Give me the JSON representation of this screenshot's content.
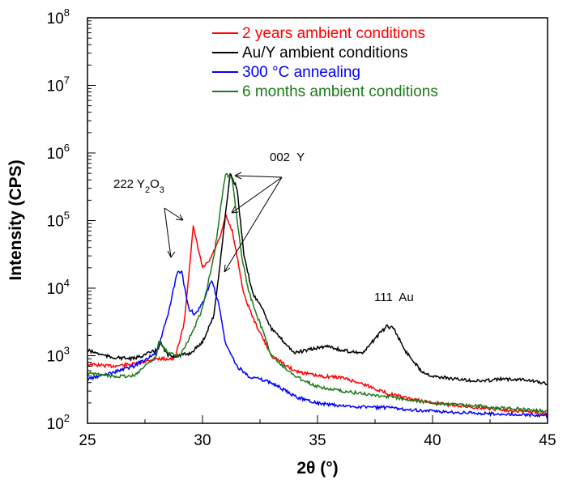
{
  "chart_data": {
    "type": "line",
    "xlabel": "2θ (°)",
    "ylabel": "Intensity (CPS)",
    "xlim": [
      25,
      45
    ],
    "ylim": [
      100,
      100000000
    ],
    "yscale": "log",
    "xticks": [
      "25",
      "30",
      "35",
      "40",
      "45"
    ],
    "yticks": [
      {
        "base": "10",
        "exp": "2"
      },
      {
        "base": "10",
        "exp": "3"
      },
      {
        "base": "10",
        "exp": "4"
      },
      {
        "base": "10",
        "exp": "5"
      },
      {
        "base": "10",
        "exp": "6"
      },
      {
        "base": "10",
        "exp": "7"
      },
      {
        "base": "10",
        "exp": "8"
      }
    ],
    "legend_position": "top-right",
    "series": [
      {
        "name": "2 years ambient conditions",
        "color": "#ff0000",
        "x": [
          25,
          26,
          27,
          28,
          28.8,
          29.2,
          29.6,
          30,
          30.3,
          30.8,
          31,
          31.3,
          31.8,
          32.3,
          33,
          34,
          35,
          36,
          37,
          38,
          39,
          40,
          42,
          44,
          45
        ],
        "y": [
          750,
          700,
          750,
          900,
          900,
          3000,
          80000,
          20000,
          25000,
          60000,
          120000,
          70000,
          8000,
          3000,
          1000,
          600,
          500,
          480,
          380,
          280,
          230,
          200,
          170,
          150,
          140
        ]
      },
      {
        "name": "Au/Y ambient conditions",
        "color": "#000000",
        "x": [
          25,
          26,
          27,
          28,
          28.2,
          28.5,
          29,
          29.5,
          30,
          30.5,
          30.8,
          31.2,
          31.5,
          31.8,
          32.2,
          32.5,
          33,
          34,
          35,
          35.5,
          36,
          37,
          37.5,
          38,
          38.3,
          38.8,
          39.5,
          40,
          41,
          42,
          43,
          44,
          45
        ],
        "y": [
          1200,
          950,
          900,
          1200,
          1500,
          1000,
          1000,
          1100,
          1600,
          4000,
          30000,
          500000,
          300000,
          30000,
          8000,
          6000,
          2500,
          1100,
          1300,
          1400,
          1200,
          1100,
          1800,
          2700,
          2600,
          1200,
          600,
          500,
          450,
          420,
          450,
          450,
          380
        ]
      },
      {
        "name": "300 °C annealing",
        "color": "#0000ff",
        "x": [
          25,
          26,
          27,
          28,
          28.5,
          28.9,
          29.1,
          29.4,
          29.7,
          30,
          30.4,
          30.7,
          31,
          31.5,
          32,
          33,
          34,
          35,
          36,
          38,
          40,
          42,
          45
        ],
        "y": [
          450,
          550,
          700,
          1100,
          4000,
          17000,
          17000,
          5000,
          4000,
          6000,
          13000,
          6000,
          1500,
          700,
          500,
          400,
          250,
          200,
          180,
          170,
          150,
          140,
          130
        ]
      },
      {
        "name": "6 months ambient conditions",
        "color": "#1a7a1a",
        "x": [
          25,
          26,
          27,
          28,
          28.1,
          28.5,
          29,
          29.5,
          30,
          30.5,
          31,
          31.3,
          31.7,
          32,
          32.5,
          33,
          34,
          35,
          36,
          38,
          40,
          42,
          45
        ],
        "y": [
          550,
          500,
          500,
          1000,
          1600,
          1100,
          1000,
          2000,
          5000,
          30000,
          500000,
          400000,
          30000,
          9000,
          3000,
          1000,
          500,
          350,
          300,
          250,
          200,
          180,
          150
        ]
      }
    ],
    "annotations": [
      {
        "text": "222 Y",
        "sub1": "2",
        "mid": "O",
        "sub2": "3"
      },
      {
        "text": "002  Y"
      },
      {
        "text": "111  Au"
      }
    ]
  }
}
